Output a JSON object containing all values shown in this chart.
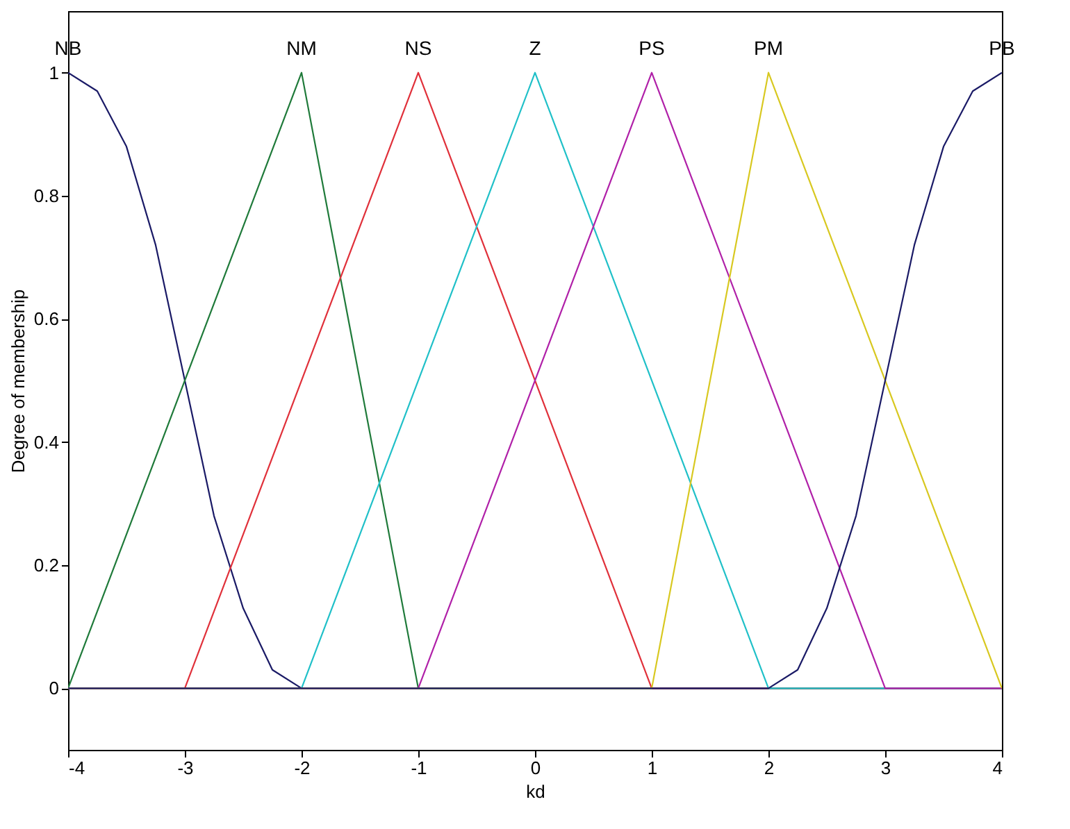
{
  "chart_data": {
    "type": "line",
    "xlabel": "kd",
    "ylabel": "Degree of membership",
    "xlim": [
      -4,
      4
    ],
    "ylim": [
      -0.1,
      1.1
    ],
    "xticks": [
      -4,
      -3,
      -2,
      -1,
      0,
      1,
      2,
      3,
      4
    ],
    "yticks": [
      0,
      0.2,
      0.4,
      0.6,
      0.8,
      1
    ],
    "grid": false,
    "legend": false,
    "marker": "none",
    "line_style": "solid",
    "series": [
      {
        "name": "NB",
        "color": "#1a1a66",
        "x": [
          -4,
          -3.75,
          -3.5,
          -3.25,
          -3,
          -2.75,
          -2.5,
          -2.25,
          -2,
          4
        ],
        "values": [
          1,
          0.97,
          0.88,
          0.72,
          0.5,
          0.28,
          0.13,
          0.03,
          0,
          0
        ]
      },
      {
        "name": "NM",
        "color": "#1f7a3a",
        "x": [
          -4,
          -2,
          -1,
          4
        ],
        "values": [
          0,
          1,
          0,
          0
        ]
      },
      {
        "name": "NS",
        "color": "#e0303a",
        "x": [
          -4,
          -3,
          -1,
          1,
          4
        ],
        "values": [
          0,
          0,
          1,
          0,
          0
        ]
      },
      {
        "name": "Z",
        "color": "#20c0c8",
        "x": [
          -4,
          -2,
          0,
          2,
          4
        ],
        "values": [
          0,
          0,
          1,
          0,
          0
        ]
      },
      {
        "name": "PS",
        "color": "#b020a8",
        "x": [
          -4,
          -1,
          1,
          3,
          4
        ],
        "values": [
          0,
          0,
          1,
          0,
          0
        ]
      },
      {
        "name": "PM",
        "color": "#d8c820",
        "x": [
          -4,
          1,
          2,
          4
        ],
        "values": [
          0,
          0,
          1,
          0
        ]
      },
      {
        "name": "PB",
        "color": "#1a1a66",
        "x": [
          -4,
          2,
          2.25,
          2.5,
          2.75,
          3,
          3.25,
          3.5,
          3.75,
          4
        ],
        "values": [
          0,
          0,
          0.03,
          0.13,
          0.28,
          0.5,
          0.72,
          0.88,
          0.97,
          1
        ]
      }
    ]
  }
}
